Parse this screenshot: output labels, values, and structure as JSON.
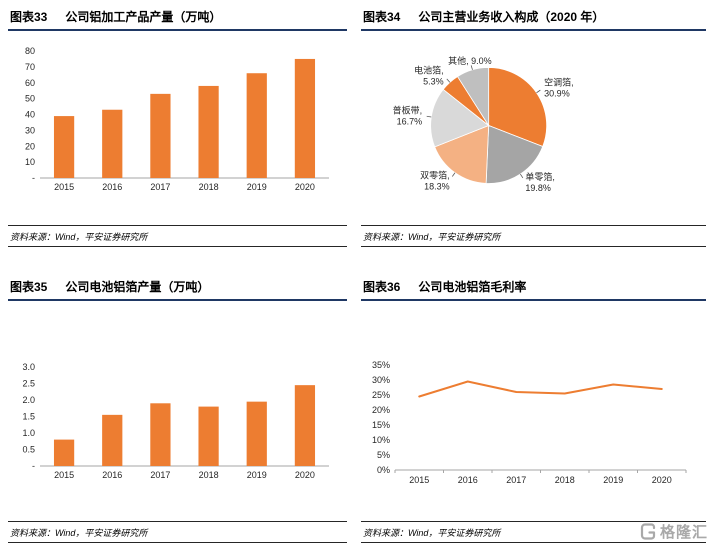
{
  "page": {
    "watermark": "格隆汇",
    "header_rule_color": "#1F3864",
    "accent_color": "#ED7D31"
  },
  "panels": [
    {
      "tag": "图表33",
      "title": "公司铝加工产品产量（万吨）",
      "source": "资料来源：Wind，平安证券研究所"
    },
    {
      "tag": "图表34",
      "title": "公司主营业务收入构成（2020 年）",
      "source": "资料来源：Wind，平安证券研究所"
    },
    {
      "tag": "图表35",
      "title": "公司电池铝箔产量（万吨）",
      "source": "资料来源：Wind，平安证券研究所"
    },
    {
      "tag": "图表36",
      "title": "公司电池铝箔毛利率",
      "source": "资料来源：Wind，平安证券研究所"
    }
  ],
  "chart_data": [
    {
      "type": "bar",
      "title": "公司铝加工产品产量（万吨）",
      "categories": [
        "2015",
        "2016",
        "2017",
        "2018",
        "2019",
        "2020"
      ],
      "values": [
        39,
        43,
        53,
        58,
        66,
        75
      ],
      "ylim": [
        0,
        80
      ],
      "ytick_vals": [
        0,
        10,
        20,
        30,
        40,
        50,
        60,
        70,
        80
      ],
      "ytick_labels": [
        "-",
        "10",
        "20",
        "30",
        "40",
        "50",
        "60",
        "70",
        "80"
      ],
      "bar_color": "#ED7D31",
      "grid": false,
      "legend": "none"
    },
    {
      "type": "pie",
      "title": "公司主营业务收入构成（2020 年）",
      "slices": [
        {
          "label": "空调箔",
          "value": 30.9,
          "display": [
            "空调箔,",
            "30.9%"
          ],
          "color": "#ED7D31"
        },
        {
          "label": "单零箔",
          "value": 19.8,
          "display": [
            "单零箔,",
            "19.8%"
          ],
          "color": "#A5A5A5"
        },
        {
          "label": "双零箔",
          "value": 18.3,
          "display": [
            "双零箔,",
            "18.3%"
          ],
          "color": "#F4B183"
        },
        {
          "label": "普板带",
          "value": 16.7,
          "display": [
            "普板带,",
            "16.7%"
          ],
          "color": "#D9D9D9"
        },
        {
          "label": "电池箔",
          "value": 5.3,
          "display": [
            "电池箔,",
            "5.3%"
          ],
          "color": "#ED7D31"
        },
        {
          "label": "其他",
          "value": 9.0,
          "display": [
            "其他, 9.0%"
          ],
          "color": "#BFBFBF"
        }
      ],
      "legend": "none"
    },
    {
      "type": "bar",
      "title": "公司电池铝箔产量（万吨）",
      "categories": [
        "2015",
        "2016",
        "2017",
        "2018",
        "2019",
        "2020"
      ],
      "values": [
        0.8,
        1.55,
        1.9,
        1.8,
        1.95,
        2.45
      ],
      "ylim": [
        0,
        3
      ],
      "ytick_vals": [
        0,
        0.5,
        1,
        1.5,
        2,
        2.5,
        3
      ],
      "ytick_labels": [
        "-",
        "0.5",
        "1.0",
        "1.5",
        "2.0",
        "2.5",
        "3.0"
      ],
      "bar_color": "#ED7D31",
      "grid": false,
      "legend": "none"
    },
    {
      "type": "line",
      "title": "公司电池铝箔毛利率",
      "categories": [
        "2015",
        "2016",
        "2017",
        "2018",
        "2019",
        "2020"
      ],
      "values": [
        24.5,
        29.5,
        26,
        25.5,
        28.5,
        27
      ],
      "ylim": [
        0,
        35
      ],
      "ytick_vals": [
        0,
        5,
        10,
        15,
        20,
        25,
        30,
        35
      ],
      "ytick_labels": [
        "0%",
        "5%",
        "10%",
        "15%",
        "20%",
        "25%",
        "30%",
        "35%"
      ],
      "line_color": "#ED7D31",
      "grid": false,
      "legend": "none"
    }
  ]
}
